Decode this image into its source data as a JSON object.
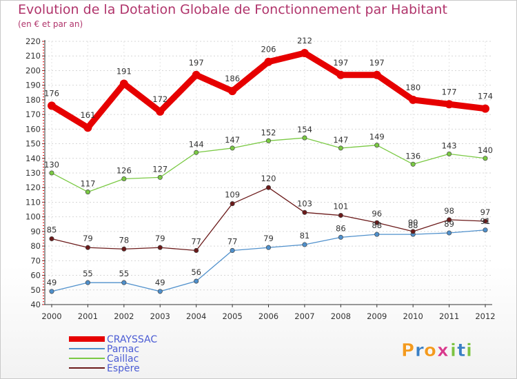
{
  "title": "Evolution de la Dotation Globale de Fonctionnement par Habitant",
  "subtitle": "(en € et par an)",
  "logo": {
    "letters": [
      "P",
      "r",
      "o",
      "x",
      "i",
      "t",
      "i"
    ],
    "colors": [
      "#f39a1e",
      "#3a7fc4",
      "#f39a1e",
      "#d83a8c",
      "#7cc242",
      "#3a7fc4",
      "#7cc242"
    ]
  },
  "chart_data": {
    "type": "line",
    "x": [
      "2000",
      "2001",
      "2002",
      "2003",
      "2004",
      "2005",
      "2006",
      "2007",
      "2008",
      "2009",
      "2010",
      "2011",
      "2012"
    ],
    "ylim": [
      40,
      220
    ],
    "yticks": [
      40,
      50,
      60,
      70,
      80,
      90,
      100,
      110,
      120,
      130,
      140,
      150,
      160,
      170,
      180,
      190,
      200,
      210,
      220
    ],
    "grid": true,
    "legend_position": "bottom-left",
    "series": [
      {
        "name": "CRAYSSAC",
        "color": "#e60000",
        "values": [
          176,
          161,
          191,
          172,
          197,
          186,
          206,
          212,
          197,
          197,
          180,
          177,
          174
        ]
      },
      {
        "name": "Parnac",
        "color": "#4f90cc",
        "values": [
          49,
          55,
          55,
          49,
          56,
          77,
          79,
          81,
          86,
          88,
          88,
          89,
          91
        ]
      },
      {
        "name": "Caillac",
        "color": "#7ac943",
        "values": [
          130,
          117,
          126,
          127,
          144,
          147,
          152,
          154,
          147,
          149,
          136,
          143,
          140
        ]
      },
      {
        "name": "Espère",
        "color": "#6b1a1a",
        "values": [
          85,
          79,
          78,
          79,
          77,
          109,
          120,
          103,
          101,
          96,
          90,
          98,
          97
        ]
      }
    ]
  }
}
